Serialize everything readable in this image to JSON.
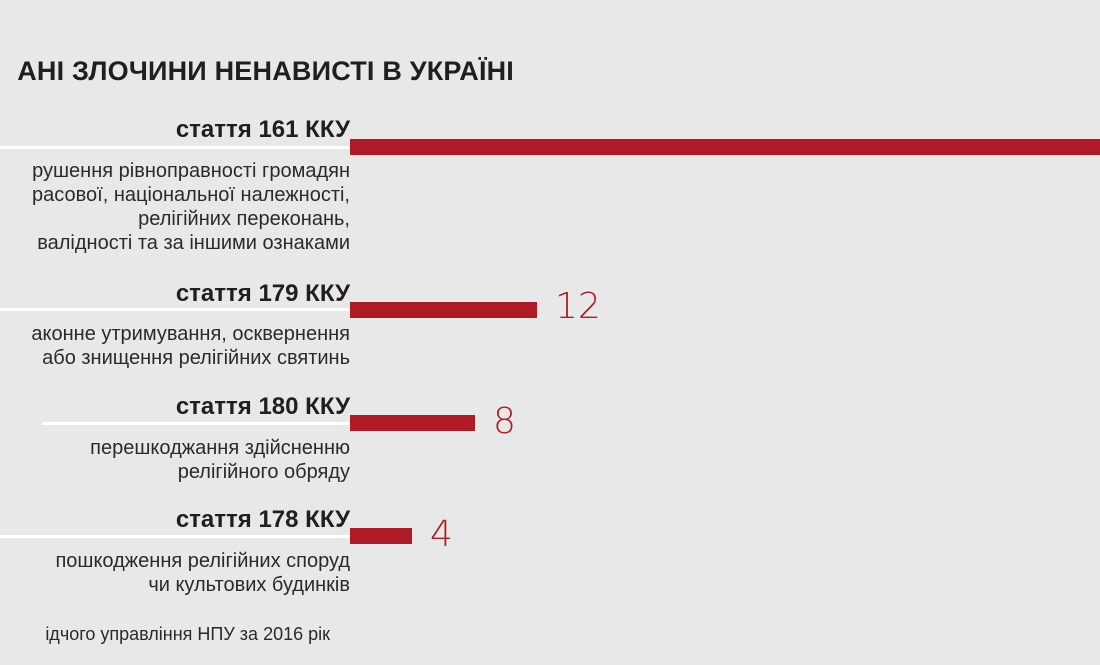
{
  "chart_data": {
    "type": "bar",
    "orientation": "horizontal",
    "title": "АНІ ЗЛОЧИНИ НЕНАВИСТІ В УКРАЇНІ",
    "categories": [
      "стаття 161 ККУ",
      "стаття 179 ККУ",
      "стаття 180 ККУ",
      "стаття 178 ККУ"
    ],
    "descriptions": [
      [
        "рушення рівноправності громадян",
        "расової, національної належності,",
        "релігійних переконань,",
        "валідності та за іншими ознаками"
      ],
      [
        "аконне утримування, осквернення",
        "або знищення релігійних святинь"
      ],
      [
        "перешкоджання здійсненню",
        "релігійного обряду"
      ],
      [
        "пошкодження релігійних споруд",
        "чи культових будинків"
      ]
    ],
    "values": [
      null,
      12,
      8,
      4
    ],
    "value_labels": [
      "",
      "12",
      "8",
      "4"
    ],
    "bar_color": "#b01a25",
    "source": "ідчого управління НПУ за 2016 рік"
  }
}
